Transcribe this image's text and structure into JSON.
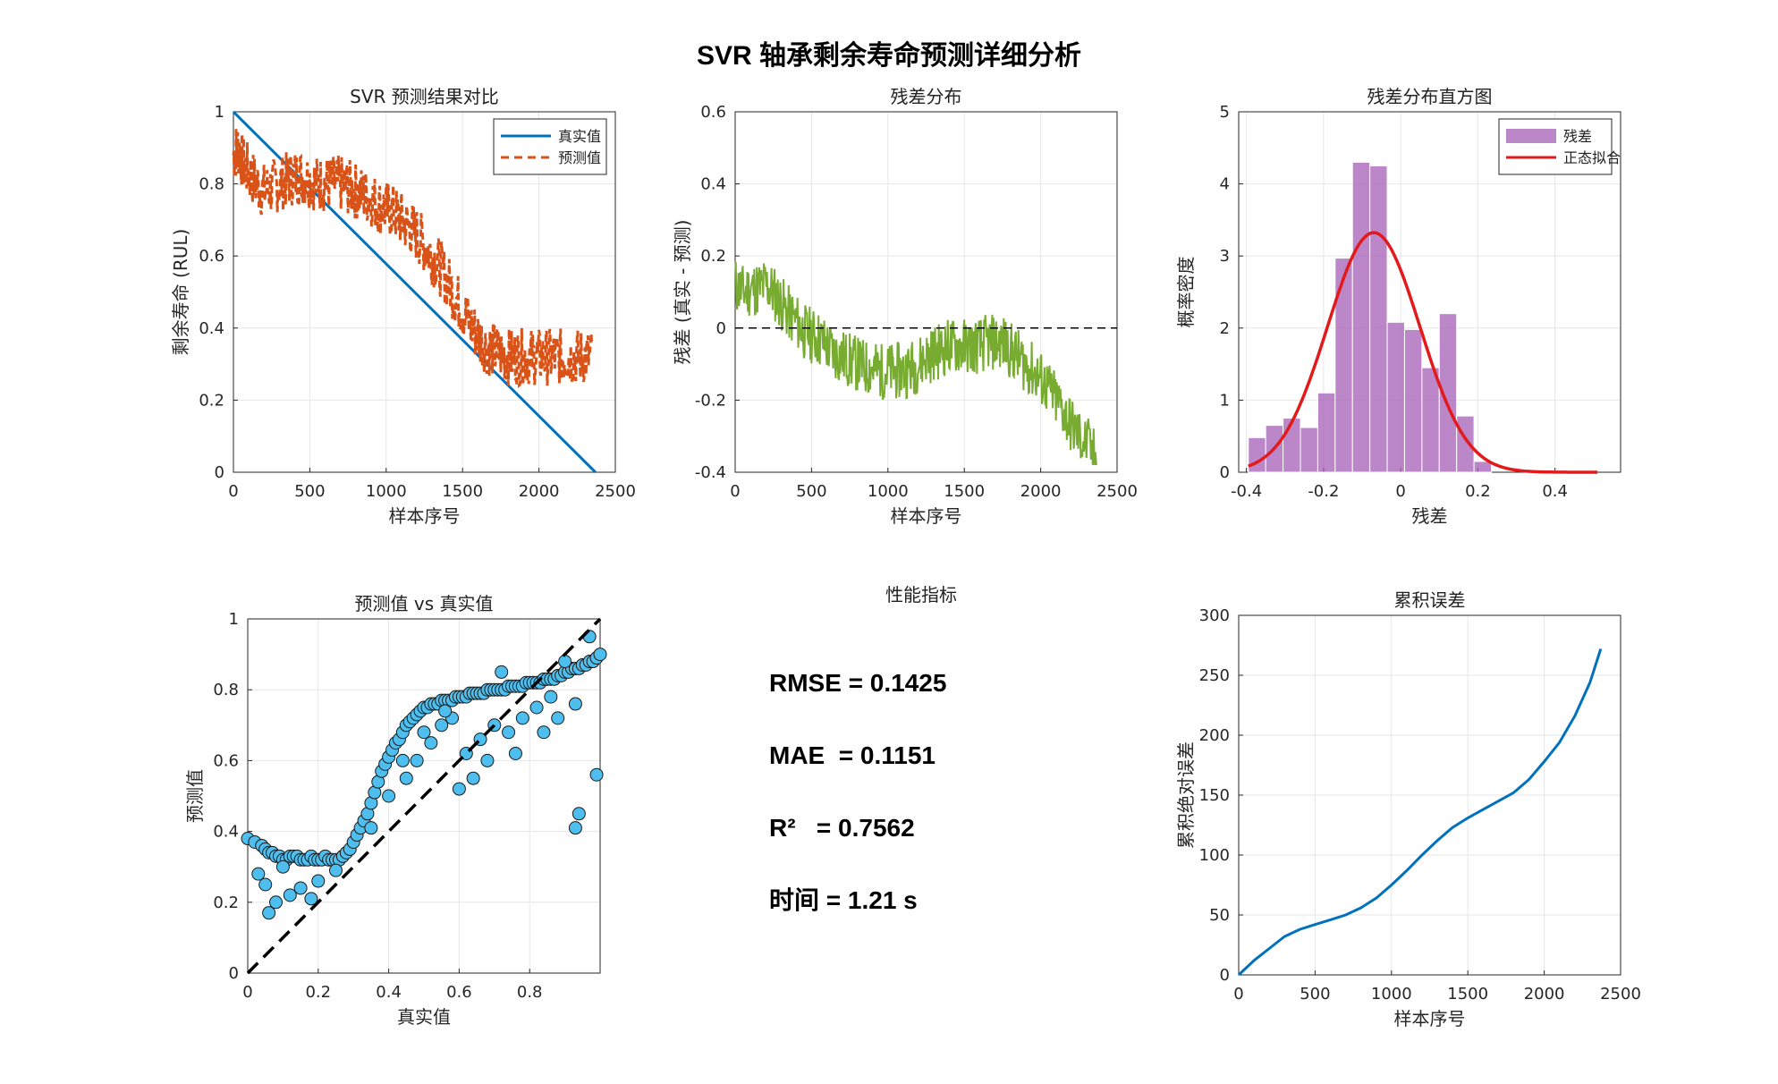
{
  "figure_title": "SVR 轴承剩余寿命预测详细分析",
  "chart_data": [
    {
      "id": "pred",
      "type": "line",
      "title": "SVR 预测结果对比",
      "xlabel": "样本序号",
      "ylabel": "剩余寿命 (RUL)",
      "xlim": [
        0,
        2500
      ],
      "ylim": [
        0,
        1
      ],
      "xticks": [
        0,
        500,
        1000,
        1500,
        2000,
        2500
      ],
      "yticks": [
        0,
        0.2,
        0.4,
        0.6,
        0.8,
        1
      ],
      "grid": true,
      "legend": "top-right",
      "series": [
        {
          "name": "真实值",
          "color": "#0072BD",
          "style": "solid",
          "x": [
            0,
            2370
          ],
          "values": [
            1,
            0
          ]
        },
        {
          "name": "预测值",
          "color": "#D95319",
          "style": "dashed",
          "x": [
            0,
            30,
            60,
            100,
            150,
            200,
            250,
            300,
            350,
            400,
            450,
            500,
            550,
            600,
            650,
            700,
            750,
            800,
            850,
            900,
            950,
            1000,
            1050,
            1100,
            1150,
            1200,
            1250,
            1300,
            1350,
            1400,
            1450,
            1500,
            1550,
            1600,
            1650,
            1700,
            1750,
            1800,
            1850,
            1900,
            1950,
            2000,
            2050,
            2100,
            2150,
            2200,
            2250,
            2300,
            2350
          ],
          "values": [
            0.88,
            0.9,
            0.86,
            0.83,
            0.8,
            0.78,
            0.79,
            0.8,
            0.81,
            0.82,
            0.82,
            0.81,
            0.8,
            0.8,
            0.8,
            0.8,
            0.79,
            0.78,
            0.77,
            0.76,
            0.74,
            0.73,
            0.72,
            0.7,
            0.68,
            0.66,
            0.63,
            0.6,
            0.57,
            0.53,
            0.49,
            0.45,
            0.41,
            0.38,
            0.35,
            0.34,
            0.33,
            0.32,
            0.32,
            0.32,
            0.32,
            0.32,
            0.32,
            0.32,
            0.32,
            0.32,
            0.32,
            0.32,
            0.32
          ]
        }
      ]
    },
    {
      "id": "resid",
      "type": "line",
      "title": "残差分布",
      "xlabel": "样本序号",
      "ylabel": "残差 (真实 - 预测)",
      "xlim": [
        0,
        2500
      ],
      "ylim": [
        -0.4,
        0.6
      ],
      "xticks": [
        0,
        500,
        1000,
        1500,
        2000,
        2500
      ],
      "yticks": [
        -0.4,
        -0.2,
        0,
        0.2,
        0.4,
        0.6
      ],
      "grid": true,
      "series": [
        {
          "name": "",
          "color": "#77AC30",
          "x": [
            0,
            50,
            100,
            150,
            200,
            250,
            300,
            350,
            400,
            450,
            500,
            550,
            600,
            650,
            700,
            750,
            800,
            850,
            900,
            950,
            1000,
            1050,
            1100,
            1150,
            1200,
            1250,
            1300,
            1350,
            1400,
            1450,
            1500,
            1550,
            1600,
            1650,
            1700,
            1750,
            1800,
            1850,
            1900,
            1950,
            2000,
            2050,
            2100,
            2150,
            2200,
            2250,
            2300,
            2370
          ],
          "values": [
            0.12,
            0.1,
            0.11,
            0.11,
            0.12,
            0.1,
            0.07,
            0.04,
            0.02,
            -0.01,
            -0.02,
            -0.03,
            -0.05,
            -0.07,
            -0.08,
            -0.09,
            -0.1,
            -0.11,
            -0.11,
            -0.12,
            -0.12,
            -0.12,
            -0.12,
            -0.11,
            -0.1,
            -0.08,
            -0.07,
            -0.06,
            -0.05,
            -0.05,
            -0.05,
            -0.05,
            -0.05,
            -0.04,
            -0.04,
            -0.04,
            -0.06,
            -0.08,
            -0.1,
            -0.12,
            -0.14,
            -0.17,
            -0.2,
            -0.23,
            -0.27,
            -0.3,
            -0.32,
            -0.37
          ]
        },
        {
          "name": "",
          "color": "#000000",
          "style": "dashed",
          "x": [
            0,
            2500
          ],
          "values": [
            0,
            0
          ]
        }
      ]
    },
    {
      "id": "hist",
      "type": "bar",
      "title": "残差分布直方图",
      "xlabel": "残差",
      "ylabel": "概率密度",
      "xlim": [
        -0.42,
        0.57
      ],
      "ylim": [
        0,
        5
      ],
      "xticks": [
        -0.4,
        -0.2,
        0,
        0.2,
        0.4
      ],
      "yticks": [
        0,
        1,
        2,
        3,
        4,
        5
      ],
      "grid": true,
      "legend": "top-right",
      "bin_edges": [
        -0.395,
        -0.35,
        -0.305,
        -0.26,
        -0.215,
        -0.17,
        -0.125,
        -0.08,
        -0.035,
        0.01,
        0.055,
        0.1,
        0.145,
        0.19,
        0.235
      ],
      "values": [
        0.48,
        0.65,
        0.75,
        0.62,
        1.1,
        2.97,
        4.3,
        4.25,
        2.08,
        1.98,
        1.45,
        2.2,
        0.78,
        0.15
      ],
      "series": [
        {
          "name": "残差",
          "color": "#A55FB5"
        },
        {
          "name": "正态拟合",
          "color": "#E31A1C",
          "mean": -0.07,
          "std": 0.12,
          "range": [
            -0.395,
            0.51
          ]
        }
      ]
    },
    {
      "id": "scatter",
      "type": "scatter",
      "title": "预测值 vs 真实值",
      "xlabel": "真实值",
      "ylabel": "预测值",
      "xlim": [
        0,
        1
      ],
      "ylim": [
        0,
        1
      ],
      "xticks": [
        0,
        0.2,
        0.4,
        0.6,
        0.8
      ],
      "yticks": [
        0,
        0.2,
        0.4,
        0.6,
        0.8,
        1
      ],
      "grid": true,
      "marker_color": "#4DBEEE",
      "reference_line": {
        "x": [
          0,
          1
        ],
        "y": [
          0,
          1
        ]
      },
      "x": [
        0.0,
        0.02,
        0.04,
        0.05,
        0.06,
        0.07,
        0.08,
        0.09,
        0.1,
        0.11,
        0.12,
        0.13,
        0.14,
        0.15,
        0.16,
        0.17,
        0.18,
        0.19,
        0.2,
        0.21,
        0.22,
        0.23,
        0.24,
        0.25,
        0.26,
        0.27,
        0.28,
        0.29,
        0.3,
        0.31,
        0.32,
        0.33,
        0.34,
        0.35,
        0.36,
        0.37,
        0.38,
        0.39,
        0.4,
        0.41,
        0.42,
        0.43,
        0.44,
        0.45,
        0.46,
        0.47,
        0.48,
        0.49,
        0.5,
        0.51,
        0.52,
        0.53,
        0.54,
        0.55,
        0.56,
        0.57,
        0.58,
        0.59,
        0.6,
        0.61,
        0.62,
        0.63,
        0.64,
        0.65,
        0.66,
        0.67,
        0.68,
        0.69,
        0.7,
        0.71,
        0.72,
        0.73,
        0.74,
        0.75,
        0.76,
        0.77,
        0.78,
        0.79,
        0.8,
        0.81,
        0.82,
        0.83,
        0.84,
        0.85,
        0.86,
        0.87,
        0.88,
        0.89,
        0.9,
        0.91,
        0.92,
        0.93,
        0.94,
        0.95,
        0.96,
        0.97,
        0.98,
        0.99,
        1.0,
        0.05,
        0.08,
        0.12,
        0.06,
        0.15,
        0.1,
        0.2,
        0.18,
        0.03,
        0.25,
        0.35,
        0.4,
        0.45,
        0.48,
        0.52,
        0.55,
        0.58,
        0.62,
        0.66,
        0.7,
        0.74,
        0.78,
        0.82,
        0.86,
        0.9,
        0.94,
        0.93,
        0.93,
        0.99,
        0.97,
        0.64,
        0.6,
        0.68,
        0.76,
        0.84,
        0.88,
        0.5,
        0.56,
        0.44,
        0.72
      ],
      "y": [
        0.38,
        0.37,
        0.36,
        0.35,
        0.34,
        0.34,
        0.33,
        0.33,
        0.32,
        0.32,
        0.33,
        0.33,
        0.33,
        0.32,
        0.32,
        0.32,
        0.33,
        0.32,
        0.32,
        0.32,
        0.33,
        0.32,
        0.32,
        0.32,
        0.32,
        0.33,
        0.34,
        0.35,
        0.37,
        0.39,
        0.41,
        0.43,
        0.45,
        0.48,
        0.51,
        0.54,
        0.57,
        0.59,
        0.61,
        0.63,
        0.65,
        0.66,
        0.68,
        0.7,
        0.71,
        0.72,
        0.73,
        0.74,
        0.75,
        0.75,
        0.76,
        0.76,
        0.76,
        0.77,
        0.77,
        0.77,
        0.77,
        0.78,
        0.78,
        0.78,
        0.78,
        0.79,
        0.79,
        0.79,
        0.79,
        0.79,
        0.8,
        0.8,
        0.8,
        0.8,
        0.8,
        0.8,
        0.81,
        0.81,
        0.81,
        0.81,
        0.81,
        0.82,
        0.82,
        0.82,
        0.82,
        0.82,
        0.83,
        0.83,
        0.83,
        0.83,
        0.84,
        0.84,
        0.85,
        0.85,
        0.86,
        0.86,
        0.86,
        0.87,
        0.87,
        0.88,
        0.88,
        0.89,
        0.9,
        0.25,
        0.2,
        0.22,
        0.17,
        0.24,
        0.3,
        0.26,
        0.21,
        0.28,
        0.29,
        0.41,
        0.5,
        0.55,
        0.6,
        0.65,
        0.7,
        0.72,
        0.62,
        0.66,
        0.7,
        0.68,
        0.72,
        0.75,
        0.78,
        0.88,
        0.45,
        0.41,
        0.76,
        0.56,
        0.95,
        0.55,
        0.52,
        0.6,
        0.62,
        0.68,
        0.72,
        0.68,
        0.74,
        0.6,
        0.85
      ]
    },
    {
      "id": "cum",
      "type": "line",
      "title": "累积误差",
      "xlabel": "样本序号",
      "ylabel": "累积绝对误差",
      "xlim": [
        0,
        2500
      ],
      "ylim": [
        0,
        300
      ],
      "xticks": [
        0,
        500,
        1000,
        1500,
        2000,
        2500
      ],
      "yticks": [
        0,
        50,
        100,
        150,
        200,
        250,
        300
      ],
      "grid": true,
      "series": [
        {
          "name": "",
          "color": "#0072BD",
          "x": [
            0,
            100,
            200,
            300,
            400,
            500,
            600,
            700,
            800,
            900,
            1000,
            1100,
            1200,
            1300,
            1400,
            1500,
            1600,
            1700,
            1800,
            1900,
            2000,
            2100,
            2200,
            2300,
            2370
          ],
          "values": [
            0,
            12,
            22,
            32,
            38,
            42,
            46,
            50,
            56,
            64,
            75,
            87,
            100,
            112,
            123,
            131,
            138,
            145,
            152,
            163,
            178,
            194,
            216,
            244,
            272
          ]
        }
      ]
    }
  ],
  "metrics_panel": {
    "title": "性能指标",
    "lines": [
      "RMSE = 0.1425",
      "MAE  = 0.1151",
      "R²   = 0.7562",
      "时间 = 1.21 s"
    ]
  }
}
